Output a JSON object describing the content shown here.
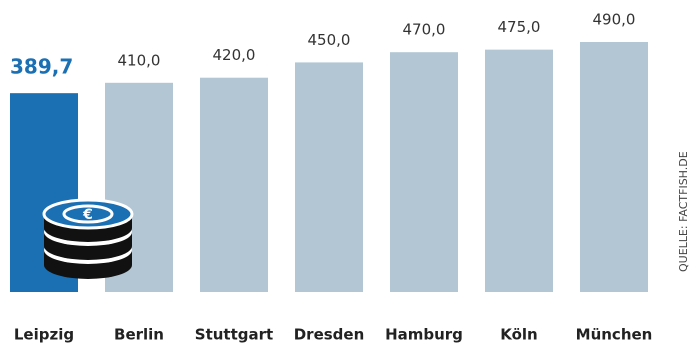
{
  "chart_data": {
    "type": "bar",
    "categories": [
      "Leipzig",
      "Berlin",
      "Stuttgart",
      "Dresden",
      "Hamburg",
      "Köln",
      "München"
    ],
    "values": [
      389.7,
      410.0,
      420.0,
      450.0,
      470.0,
      475.0,
      490.0
    ],
    "value_labels": [
      "389,7",
      "410,0",
      "420,0",
      "450,0",
      "470,0",
      "475,0",
      "490,0"
    ],
    "colors": [
      "#1b6fb3",
      "#b3c6d4",
      "#b3c6d4",
      "#b3c6d4",
      "#b3c6d4",
      "#b3c6d4",
      "#b3c6d4"
    ],
    "source": "QUELLE: FACTFISH.DE"
  }
}
